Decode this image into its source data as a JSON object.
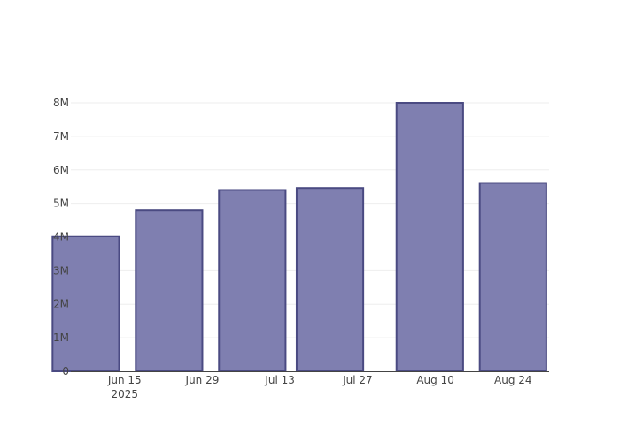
{
  "chart_data": {
    "type": "bar",
    "title": "",
    "xlabel": "",
    "ylabel": "",
    "x_axis_type": "date",
    "bars": [
      {
        "date": "2025-06-08",
        "value": 4020000
      },
      {
        "date": "2025-06-23",
        "value": 4800000
      },
      {
        "date": "2025-07-08",
        "value": 5400000
      },
      {
        "date": "2025-07-22",
        "value": 5460000
      },
      {
        "date": "2025-08-09",
        "value": 8000000
      },
      {
        "date": "2025-08-24",
        "value": 5610000
      }
    ],
    "ylim": [
      0,
      8000000
    ],
    "y_ticks": [
      0,
      1000000,
      2000000,
      3000000,
      4000000,
      5000000,
      6000000,
      7000000,
      8000000
    ],
    "y_tick_labels": [
      "0",
      "1M",
      "2M",
      "3M",
      "4M",
      "5M",
      "6M",
      "7M",
      "8M"
    ],
    "x_ticks": [
      "2025-06-15",
      "2025-06-29",
      "2025-07-13",
      "2025-07-27",
      "2025-08-10",
      "2025-08-24"
    ],
    "x_tick_labels": [
      "Jun 15",
      "Jun 29",
      "Jul 13",
      "Jul 27",
      "Aug 10",
      "Aug 24"
    ],
    "x_tick_sublabels": [
      "2025",
      "",
      "",
      "",
      "",
      ""
    ],
    "grid": true,
    "bar_color": "#7f7fb0",
    "bar_edge_color": "#4a4a82",
    "grid_color": "#eeeeee",
    "axis_color": "#444444"
  }
}
